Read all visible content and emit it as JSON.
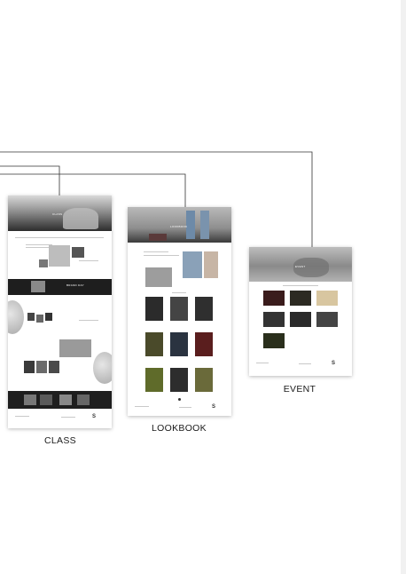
{
  "captions": {
    "class": "CLASS",
    "lookbook": "LOOKBOOK",
    "event": "EVENT"
  },
  "class_page": {
    "hero_text": "CLASS",
    "banner_text": "BRAND DAY"
  },
  "lookbook_page": {
    "hero_text": "LOOKBOOK"
  },
  "event_page": {
    "hero_text": "EVENT"
  },
  "colors": {
    "connector": "#333333",
    "dark_band": "#1e1e1e",
    "card_bg": "#ffffff"
  }
}
